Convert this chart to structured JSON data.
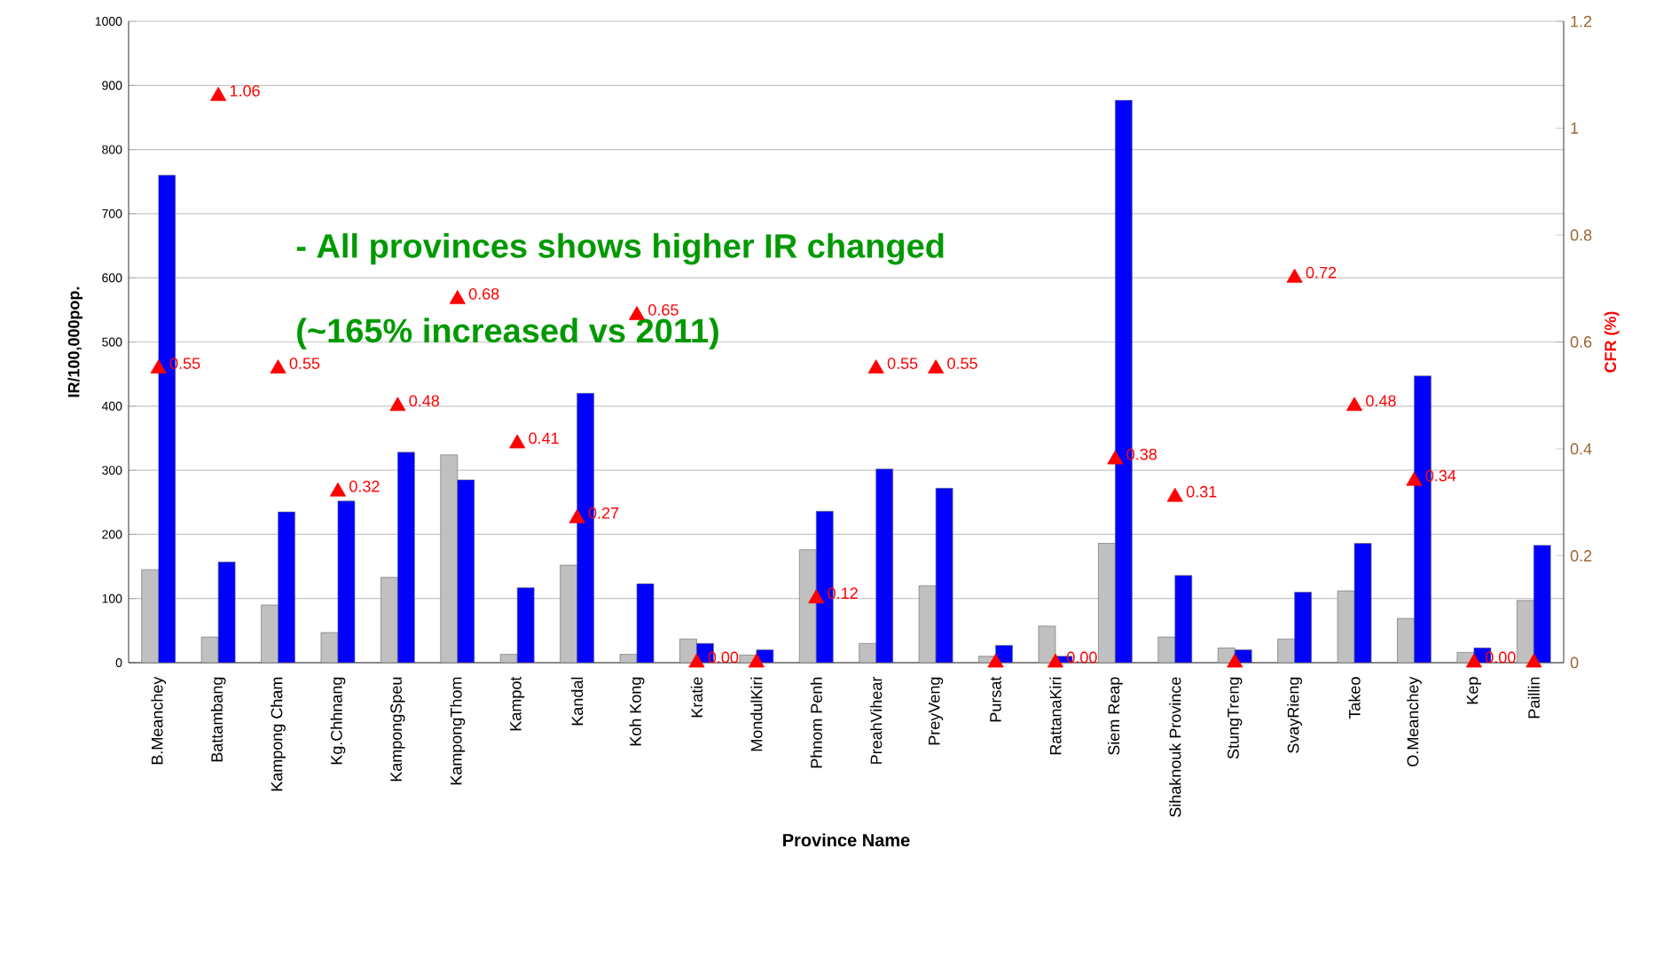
{
  "chart_data": {
    "type": "bar",
    "categories": [
      "B.Meanchey",
      "Battambang",
      "Kampong Cham",
      "Kg.Chhnang",
      "KampongSpeu",
      "KampongThom",
      "Kampot",
      "Kandal",
      "Koh Kong",
      "Kratie",
      "MondulKiri",
      "Phnom Penh",
      "PreahVihear",
      "PreyVeng",
      "Pursat",
      "RattanaKiri",
      "Siem Reap",
      "Sihaknouk Province",
      "StungTreng",
      "SvayRieng",
      "Takeo",
      "O.Meanchey",
      "Kep",
      "Paillin"
    ],
    "series": [
      {
        "color": "#c0c0c0",
        "values": [
          145,
          40,
          90,
          47,
          133,
          324,
          13,
          152,
          13,
          37,
          12,
          176,
          30,
          120,
          10,
          57,
          186,
          40,
          23,
          37,
          112,
          69,
          16,
          97
        ]
      },
      {
        "color": "#0000ff",
        "values": [
          760,
          157,
          235,
          252,
          328,
          285,
          117,
          420,
          123,
          30,
          20,
          236,
          302,
          272,
          27,
          10,
          877,
          136,
          20,
          110,
          186,
          447,
          23,
          183
        ]
      },
      {
        "type": "scatter",
        "axis": "y2",
        "color": "#ff0000",
        "values": [
          0.55,
          1.06,
          0.55,
          0.32,
          0.48,
          0.68,
          0.41,
          0.27,
          0.65,
          0,
          0,
          0.12,
          0.55,
          0.55,
          0,
          0,
          0.38,
          0.31,
          0,
          0.72,
          0.48,
          0.34,
          0,
          0
        ],
        "value_labels": [
          "0.55",
          "1.06",
          "0.55",
          "0.32",
          "0.48",
          "0.68",
          "0.41",
          "0.27",
          "0.65",
          "0.00",
          null,
          "0.12",
          "0.55",
          "0.55",
          null,
          "0.00",
          "0.38",
          "0.31",
          null,
          "0.72",
          "0.48",
          "0.34",
          "0.00",
          null
        ]
      }
    ],
    "xlabel": "Province Name",
    "ylabel": "IR/100,000pop.",
    "y2label": "CFR (%)",
    "ylim": [
      0,
      1000
    ],
    "yticks": [
      0,
      100,
      200,
      300,
      400,
      500,
      600,
      700,
      800,
      900,
      1000
    ],
    "y2lim": [
      0,
      1.2
    ],
    "y2ticks": [
      0,
      0.2,
      0.4,
      0.6,
      0.8,
      1,
      1.2
    ],
    "grid": "y",
    "marker": "triangle",
    "annotations": [
      "- All provinces shows higher IR changed",
      "(~165% increased vs 2011)"
    ]
  }
}
